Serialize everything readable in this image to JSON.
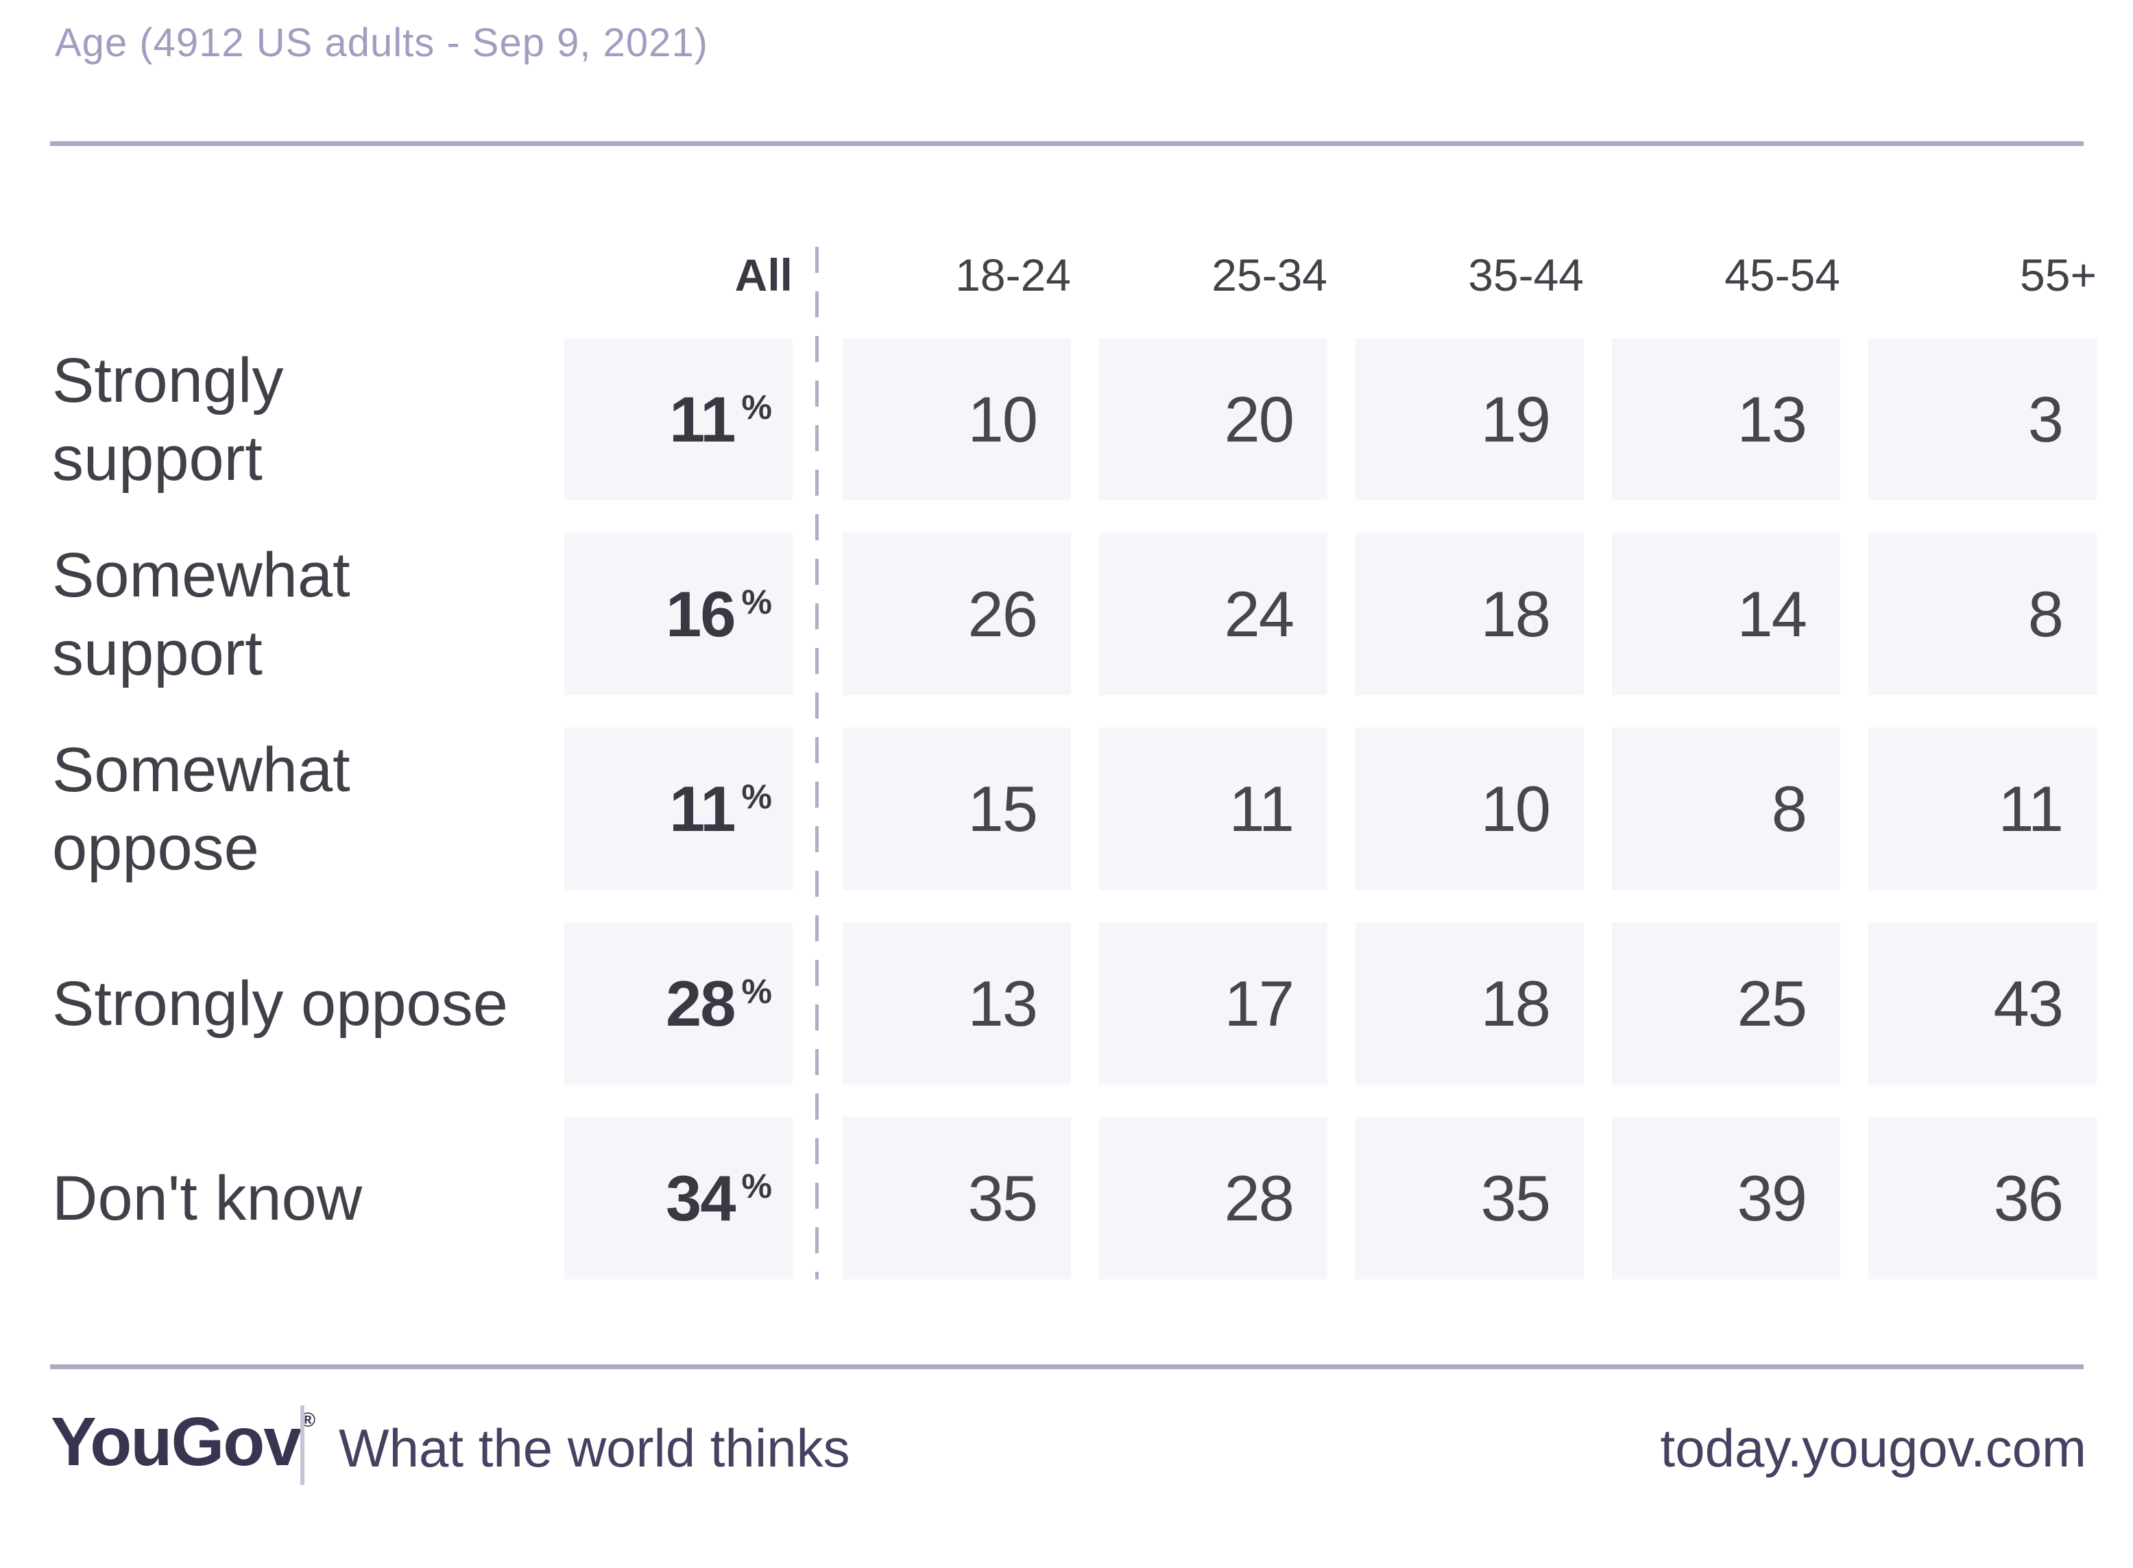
{
  "title": "Age (4912 US adults - Sep 9, 2021)",
  "table": {
    "all_label": "All",
    "age_columns": [
      "18-24",
      "25-34",
      "35-44",
      "45-54",
      "55+"
    ],
    "percent_sign": "%",
    "rows": [
      {
        "label": "Strongly\nsupport",
        "all": "11",
        "values": [
          "10",
          "20",
          "19",
          "13",
          "3"
        ]
      },
      {
        "label": "Somewhat\nsupport",
        "all": "16",
        "values": [
          "26",
          "24",
          "18",
          "14",
          "8"
        ]
      },
      {
        "label": "Somewhat\noppose",
        "all": "11",
        "values": [
          "15",
          "11",
          "10",
          "8",
          "11"
        ]
      },
      {
        "label": "Strongly oppose",
        "all": "28",
        "values": [
          "13",
          "17",
          "18",
          "25",
          "43"
        ]
      },
      {
        "label": "Don't know",
        "all": "34",
        "values": [
          "35",
          "28",
          "35",
          "39",
          "36"
        ]
      }
    ]
  },
  "footer": {
    "logo": "YouGov",
    "registered_mark": "®",
    "tagline": "What the world thinks",
    "url": "today.yougov.com"
  },
  "colors": {
    "title_text": "#a39cbf",
    "rule": "#b0a9c3",
    "dashed_divider": "#b3adc7",
    "cell_background": "#f6f6fa",
    "label_text": "#414049",
    "value_text": "#47464f",
    "bold_value_text": "#3a3943",
    "footer_text": "#474060",
    "logo_text": "#3a3450"
  },
  "chart_data": {
    "type": "table",
    "title": "Age (4912 US adults - Sep 9, 2021)",
    "units": "%",
    "columns": [
      "All",
      "18-24",
      "25-34",
      "35-44",
      "45-54",
      "55+"
    ],
    "row_categories": [
      "Strongly support",
      "Somewhat support",
      "Somewhat oppose",
      "Strongly oppose",
      "Don't know"
    ],
    "values_percent": [
      [
        11,
        10,
        20,
        19,
        13,
        3
      ],
      [
        16,
        26,
        24,
        18,
        14,
        8
      ],
      [
        11,
        15,
        11,
        10,
        8,
        11
      ],
      [
        28,
        13,
        17,
        18,
        25,
        43
      ],
      [
        34,
        35,
        28,
        35,
        39,
        36
      ]
    ],
    "notes": "Crosstab of support by age group; All column shown bold with % sign"
  }
}
